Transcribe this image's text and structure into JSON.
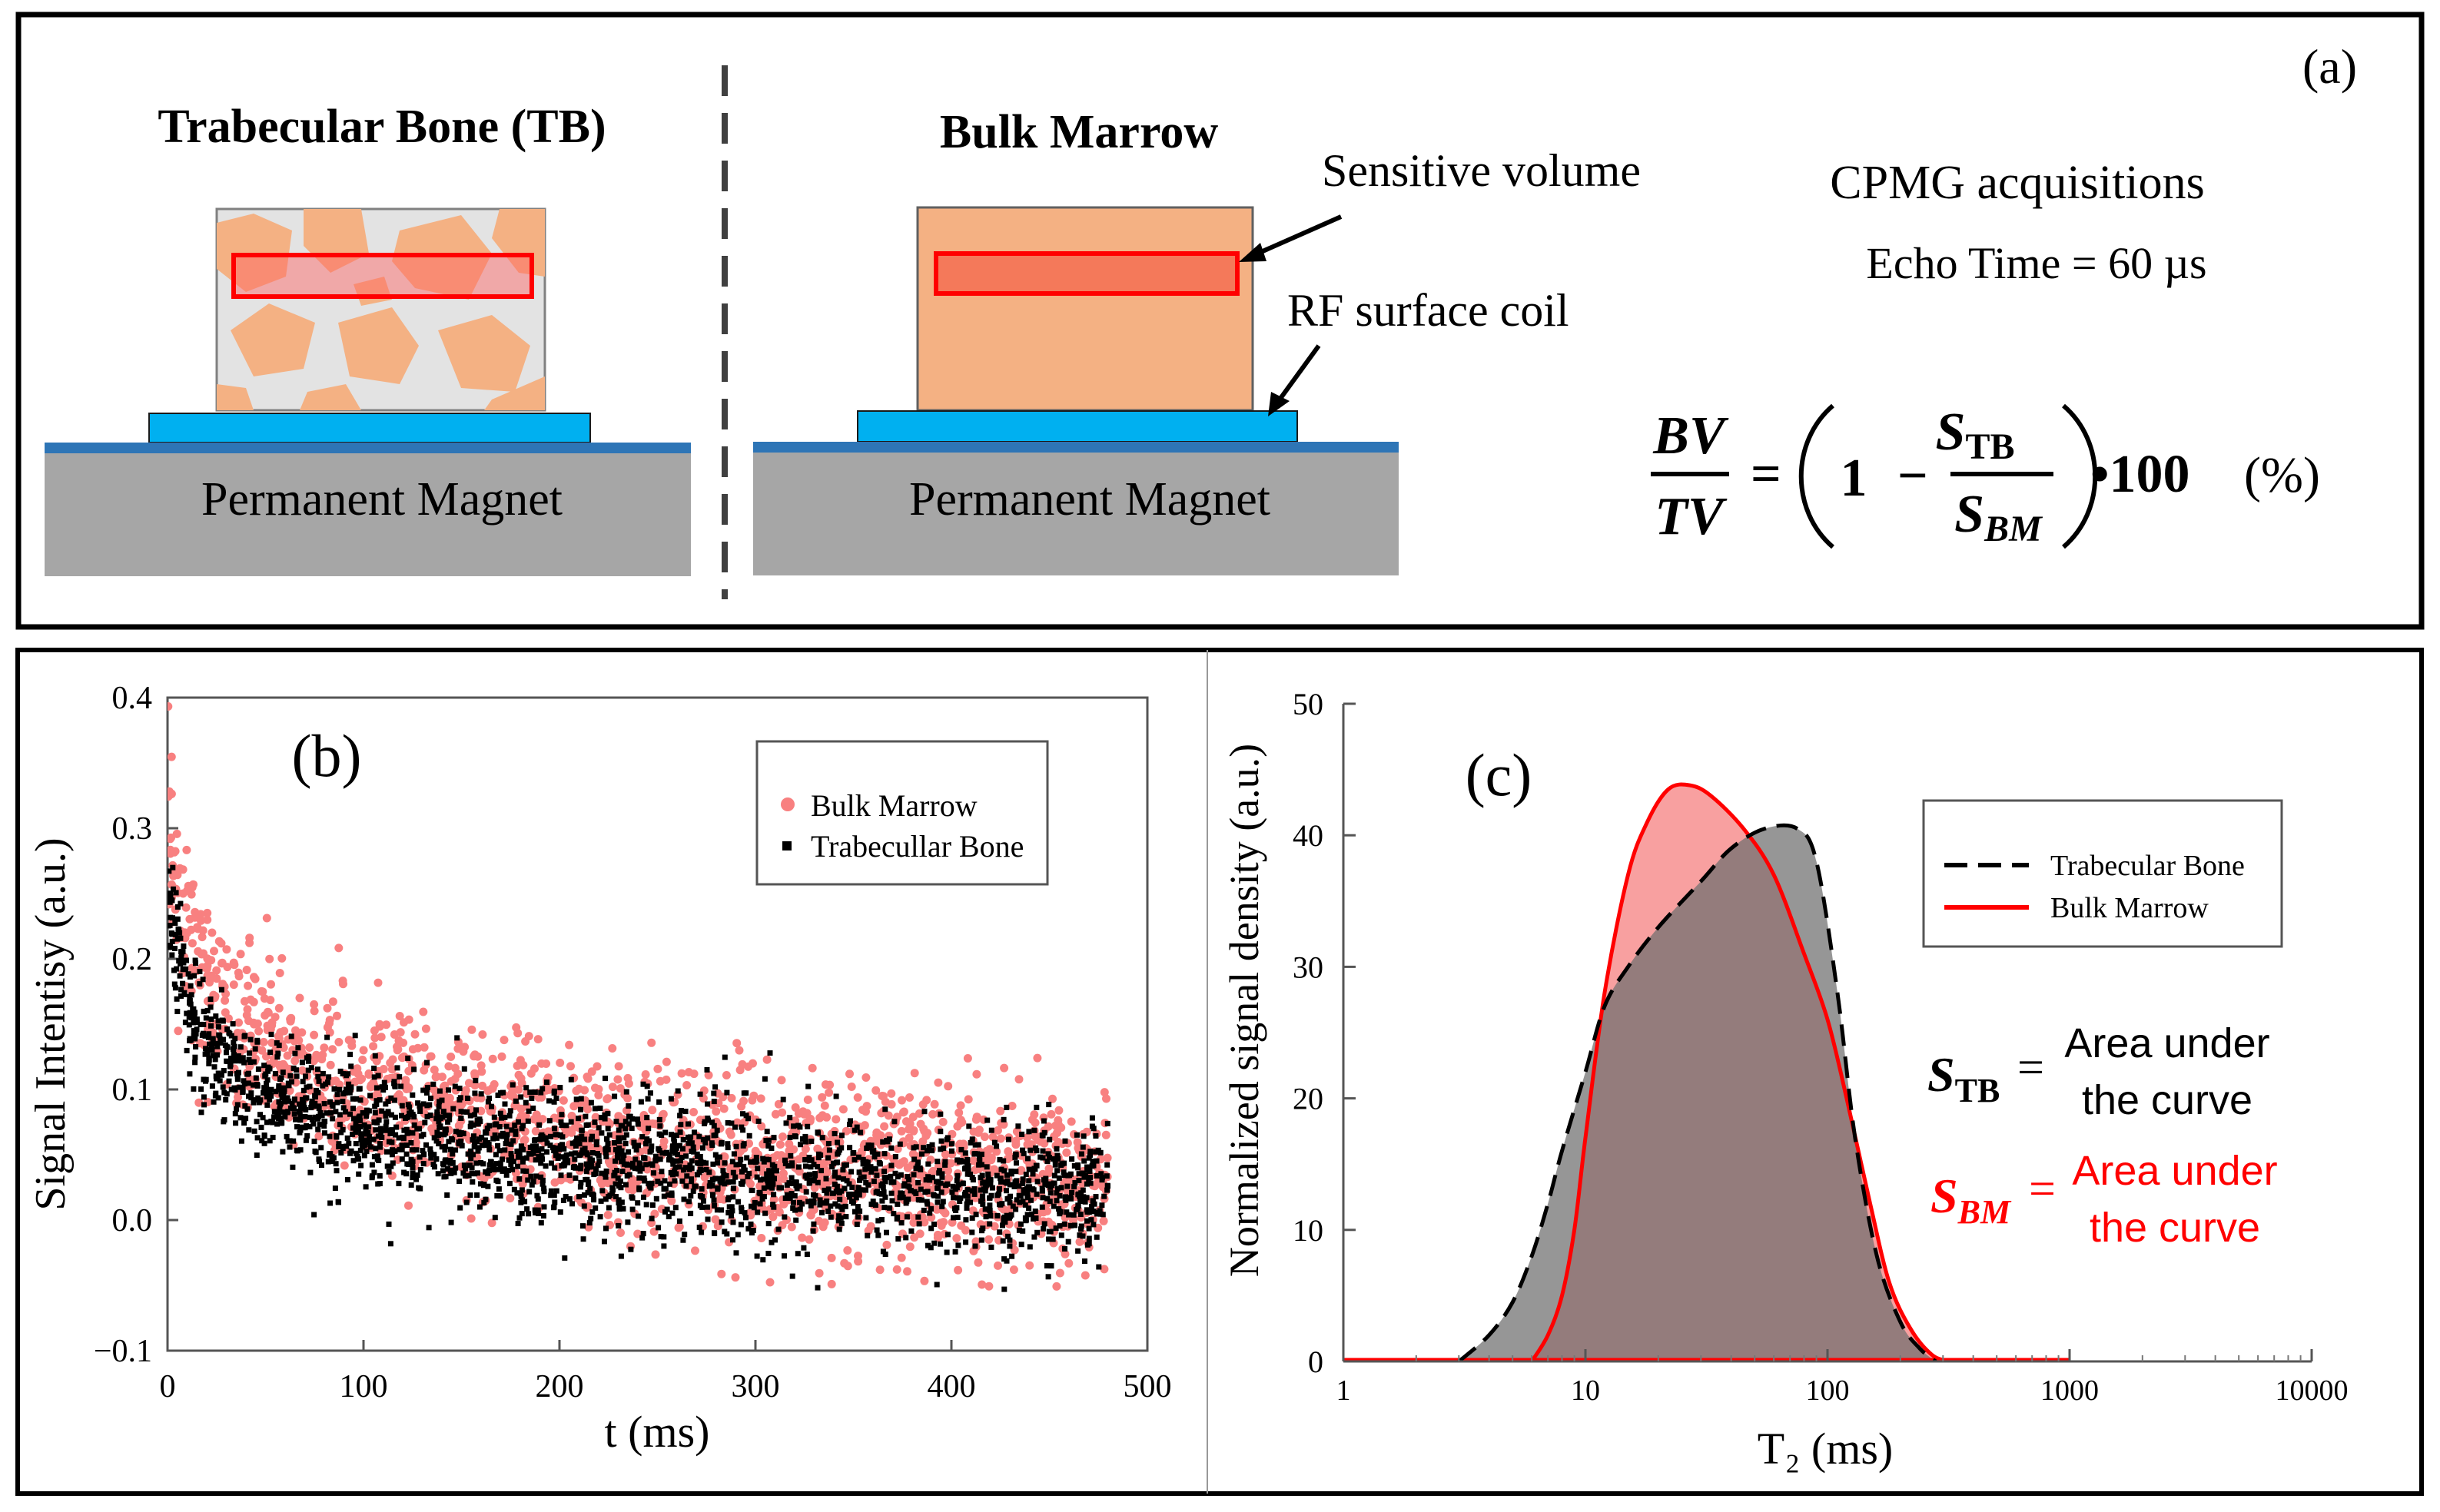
{
  "panel_a": {
    "label": "(a)",
    "tb_title": "Trabecular Bone (TB)",
    "bm_title": "Bulk Marrow",
    "magnet_left": "Permanent Magnet",
    "magnet_right": "Permanent Magnet",
    "sensitive_volume": "Sensitive volume",
    "rf_coil": "RF surface coil",
    "cpmg": "CPMG acquisitions",
    "echo_time": "Echo Time = 60 µs",
    "formula": {
      "bv": "BV",
      "tv": "TV",
      "equals": "=",
      "one": "1",
      "minus": "−",
      "s": "S",
      "tb_sub": "TB",
      "bm_sub": "BM",
      "times": "•100",
      "percent": "(%)"
    },
    "colors": {
      "marrow": "#f4b183",
      "marrow_dark": "#eda06d",
      "bone_bg": "#e3e3e3",
      "sensitive": "#ff0000",
      "coil": "#00b0f0",
      "magnet": "#a6a6a6",
      "magnet_top": "#2e75b6"
    }
  },
  "chart_data": [
    {
      "id": "b",
      "type": "scatter",
      "label": "(b)",
      "xlabel": "t (ms)",
      "ylabel": "Signal Intentisy (a.u.)",
      "xlim": [
        0,
        500
      ],
      "ylim": [
        -0.1,
        0.4
      ],
      "xticks": [
        0,
        100,
        200,
        300,
        400,
        500
      ],
      "yticks": [
        -0.1,
        0.0,
        0.1,
        0.2,
        0.3,
        0.4
      ],
      "ytick_labels": [
        "−0.1",
        "0.0",
        "0.1",
        "0.2",
        "0.3",
        "0.4"
      ],
      "legend": [
        "Bulk Marrow",
        "Trabecullar Bone"
      ],
      "legend_position": "top-right",
      "x_range_data": [
        0,
        480
      ],
      "series": [
        {
          "name": "Bulk Marrow",
          "color": "#f88080",
          "marker": "circle",
          "model": {
            "amplitudes": [
              0.13,
              0.09,
              0.09
            ],
            "time_constants": [
              12,
              90,
              420
            ],
            "noise_sd": 0.032,
            "points": 1700
          }
        },
        {
          "name": "Trabecullar Bone",
          "color": "#000000",
          "marker": "square",
          "model": {
            "amplitudes": [
              0.12,
              0.07,
              0.07
            ],
            "time_constants": [
              10,
              70,
              400
            ],
            "noise_sd": 0.025,
            "points": 2400
          }
        }
      ]
    },
    {
      "id": "c",
      "type": "area",
      "label": "(c)",
      "xlabel": "T₂ (ms)",
      "ylabel": "Normalized signal density (a.u.)",
      "xscale": "log",
      "xlim": [
        1,
        10000
      ],
      "ylim": [
        0,
        50
      ],
      "xticks": [
        1,
        10,
        100,
        1000,
        10000
      ],
      "yticks": [
        0,
        10,
        20,
        30,
        40,
        50
      ],
      "legend": [
        "Trabecular Bone",
        "Bulk Marrow"
      ],
      "legend_position": "top-right",
      "series": [
        {
          "name": "Trabecular Bone",
          "style": "dashed",
          "color": "#000000",
          "fill": "#6e6e6e",
          "points": [
            [
              3.0,
              0
            ],
            [
              4,
              2
            ],
            [
              5,
              4.5
            ],
            [
              6,
              8
            ],
            [
              7,
              12
            ],
            [
              8,
              16
            ],
            [
              10,
              22
            ],
            [
              12,
              27
            ],
            [
              15,
              30
            ],
            [
              20,
              33
            ],
            [
              30,
              36.5
            ],
            [
              40,
              39
            ],
            [
              55,
              40.5
            ],
            [
              75,
              40.5
            ],
            [
              90,
              38
            ],
            [
              110,
              28
            ],
            [
              130,
              17
            ],
            [
              160,
              8
            ],
            [
              200,
              3
            ],
            [
              240,
              1
            ],
            [
              280,
              0
            ]
          ]
        },
        {
          "name": "Bulk Marrow",
          "style": "solid",
          "color": "#ff0000",
          "fill": "#f8a0a0",
          "points": [
            [
              6,
              0
            ],
            [
              7,
              2
            ],
            [
              8,
              5
            ],
            [
              9,
              10
            ],
            [
              10,
              17
            ],
            [
              12,
              28
            ],
            [
              15,
              37
            ],
            [
              18,
              41
            ],
            [
              22,
              43.5
            ],
            [
              27,
              43.8
            ],
            [
              33,
              43
            ],
            [
              45,
              40.5
            ],
            [
              60,
              37
            ],
            [
              80,
              31
            ],
            [
              100,
              26
            ],
            [
              120,
              20
            ],
            [
              150,
              12
            ],
            [
              180,
              6
            ],
            [
              220,
              2.5
            ],
            [
              270,
              0.5
            ],
            [
              320,
              0
            ]
          ]
        }
      ],
      "annotations": [
        {
          "symbol": "S",
          "sub": "TB",
          "equals": "=",
          "line1": "Area under",
          "line2": "the curve",
          "color": "#000000"
        },
        {
          "symbol": "S",
          "sub": "BM",
          "equals": "=",
          "line1": "Area under",
          "line2": "the curve",
          "color": "#ff0000"
        }
      ]
    }
  ]
}
